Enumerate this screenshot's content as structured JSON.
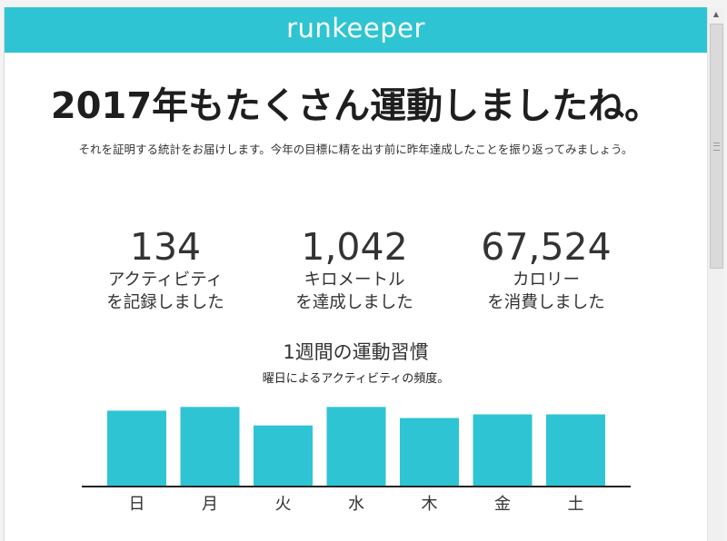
{
  "header": {
    "logo_text": "runkeeper",
    "background_color": "#2ec4d4"
  },
  "headline": "2017年もたくさん運動しましたね。",
  "subline": "それを証明する統計をお届けします。今年の目標に精を出す前に昨年達成したことを振り返ってみましょう。",
  "stats": [
    {
      "value": "134",
      "label_line1": "アクティビティ",
      "label_line2": "を記録しました"
    },
    {
      "value": "1,042",
      "label_line1": "キロメートル",
      "label_line2": "を達成しました"
    },
    {
      "value": "67,524",
      "label_line1": "カロリー",
      "label_line2": "を消費しました"
    }
  ],
  "weekly": {
    "title": "1週間の運動習慣",
    "subtitle": "曜日によるアクティビティの頻度。"
  },
  "chart_data": {
    "type": "bar",
    "categories": [
      "日",
      "月",
      "火",
      "水",
      "木",
      "金",
      "土"
    ],
    "values": [
      81,
      85,
      65,
      85,
      73,
      77,
      77
    ],
    "ylim": [
      0,
      100
    ],
    "title": "",
    "xlabel": "",
    "ylabel": "",
    "bar_color": "#2ec4d4",
    "grid": false
  },
  "scrollbar": {
    "scroll_position": 0,
    "up_arrow": "▲"
  }
}
